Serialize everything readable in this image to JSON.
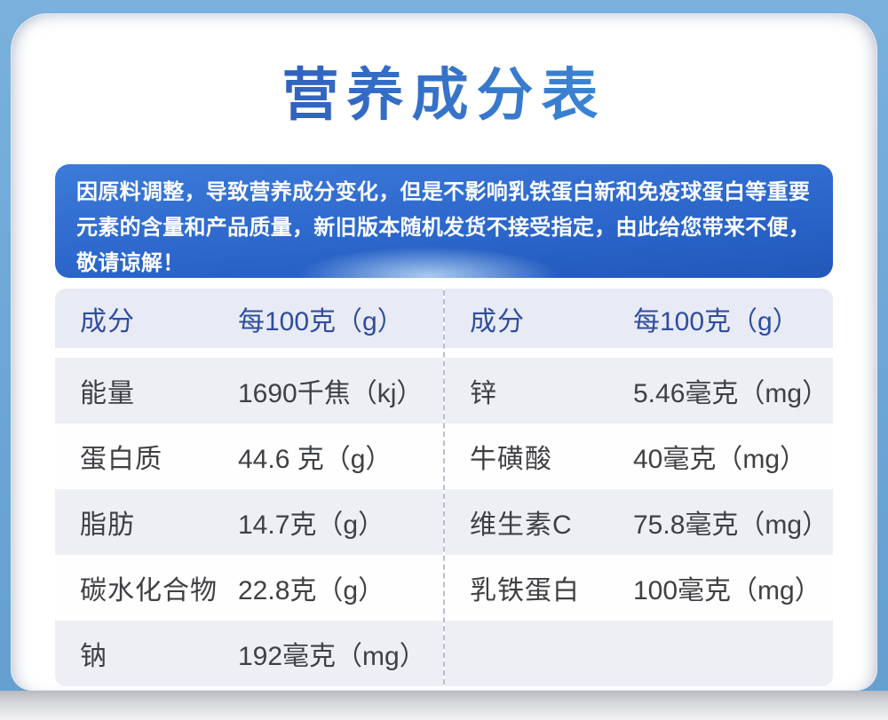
{
  "title": "营养成分表",
  "notice": {
    "lines": [
      "因原料调整，导致营养成分变化，但是不影响乳铁蛋白新和免疫球蛋白等重要",
      "元素的含量和产品质量，新旧版本随机发货不接受指定，由此给您带来不便，",
      "敬请谅解！"
    ]
  },
  "table": {
    "left": {
      "header": {
        "component": "成分",
        "amount": "每100克（g）"
      },
      "rows": [
        {
          "label": "能量",
          "value": "1690千焦（kj）"
        },
        {
          "label": "蛋白质",
          "value": "44.6 克（g）"
        },
        {
          "label": "脂肪",
          "value": "14.7克（g）"
        },
        {
          "label": "碳水化合物",
          "value": "22.8克（g）"
        },
        {
          "label": "钠",
          "value": "192毫克（mg）"
        }
      ]
    },
    "right": {
      "header": {
        "component": "成分",
        "amount": "每100克（g）"
      },
      "rows": [
        {
          "label": "锌",
          "value": "5.46毫克（mg）"
        },
        {
          "label": "牛磺酸",
          "value": "40毫克（mg）"
        },
        {
          "label": "维生素C",
          "value": "75.8毫克（mg）"
        },
        {
          "label": "乳铁蛋白",
          "value": "100毫克（mg）"
        },
        {
          "label": "",
          "value": ""
        }
      ]
    }
  },
  "colors": {
    "page_background": "#6aa5d6",
    "notice_blue": "#2c67cc",
    "header_text": "#2f4d9e",
    "body_text": "#3f4043",
    "row_tint": "#edeff5",
    "title_gradient_start": "#2a50ae",
    "title_gradient_end": "#45a3e1"
  }
}
